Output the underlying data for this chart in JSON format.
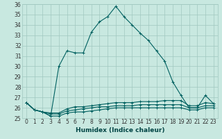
{
  "title": "",
  "xlabel": "Humidex (Indice chaleur)",
  "background_color": "#c8e8e0",
  "grid_color": "#a0c8c0",
  "line_color": "#006060",
  "x": [
    0,
    1,
    2,
    3,
    4,
    5,
    6,
    7,
    8,
    9,
    10,
    11,
    12,
    13,
    14,
    15,
    16,
    17,
    18,
    19,
    20,
    21,
    22,
    23
  ],
  "series1": [
    26.5,
    25.8,
    25.6,
    25.2,
    30.0,
    31.5,
    31.3,
    31.3,
    33.3,
    34.3,
    34.8,
    35.8,
    34.8,
    34.0,
    33.2,
    32.5,
    31.5,
    30.5,
    28.5,
    27.2,
    26.0,
    26.0,
    27.2,
    26.4
  ],
  "series2": [
    26.5,
    25.8,
    25.6,
    25.5,
    25.5,
    25.9,
    26.1,
    26.1,
    26.2,
    26.3,
    26.4,
    26.5,
    26.5,
    26.5,
    26.6,
    26.6,
    26.6,
    26.7,
    26.7,
    26.7,
    26.2,
    26.2,
    26.5,
    26.4
  ],
  "series3": [
    26.5,
    25.8,
    25.6,
    25.2,
    25.2,
    25.5,
    25.6,
    25.6,
    25.7,
    25.8,
    25.9,
    26.0,
    26.0,
    26.0,
    26.0,
    26.0,
    26.0,
    26.0,
    26.0,
    26.0,
    25.8,
    25.8,
    26.0,
    26.0
  ],
  "series4": [
    26.5,
    25.8,
    25.6,
    25.4,
    25.4,
    25.7,
    25.8,
    25.9,
    26.0,
    26.1,
    26.1,
    26.2,
    26.2,
    26.2,
    26.3,
    26.3,
    26.3,
    26.3,
    26.3,
    26.3,
    26.0,
    26.0,
    26.2,
    26.2
  ],
  "ylim": [
    25,
    36
  ],
  "yticks": [
    25,
    26,
    27,
    28,
    29,
    30,
    31,
    32,
    33,
    34,
    35,
    36
  ],
  "xticks": [
    0,
    1,
    2,
    3,
    4,
    5,
    6,
    7,
    8,
    9,
    10,
    11,
    12,
    13,
    14,
    15,
    16,
    17,
    18,
    19,
    20,
    21,
    22,
    23
  ],
  "marker": "+",
  "marker_size": 3,
  "linewidth": 0.8,
  "tick_fontsize": 5.5,
  "xlabel_fontsize": 6.5
}
